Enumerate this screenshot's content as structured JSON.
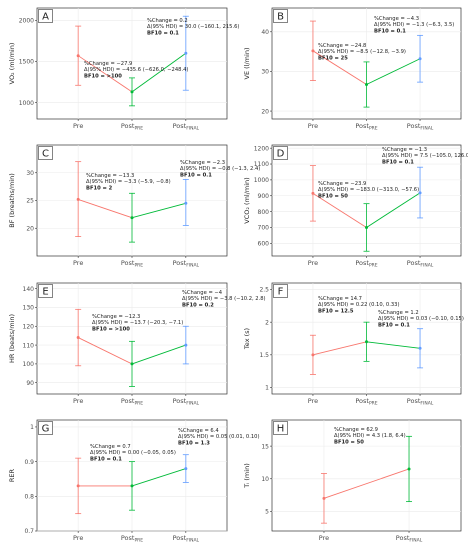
{
  "colors": {
    "panel_bg": "#ffffff",
    "grid": "#ebebeb",
    "border": "#333333",
    "pre_post": "#f8766d",
    "post_final": "#00ba38",
    "final": "#619cff",
    "text": "#222222",
    "axis_text": "#4d4d4d"
  },
  "chart_data": [
    {
      "panel": "A",
      "type": "line",
      "ylabel": "VO₂ (ml/min)",
      "categories": [
        "Pre",
        "Post_PRE",
        "Post_FINAL"
      ],
      "ylim": [
        800,
        2150
      ],
      "yticks": [
        1000,
        1500,
        2000
      ],
      "points": [
        {
          "x": "Pre",
          "y": 1570,
          "lo": 1210,
          "hi": 1930
        },
        {
          "x": "Post_PRE",
          "y": 1130,
          "lo": 960,
          "hi": 1300
        },
        {
          "x": "Post_FINAL",
          "y": 1600,
          "lo": 1150,
          "hi": 2050
        }
      ],
      "annotations": [
        [
          "%Change = 0.2",
          "Δ(95% HDI) = 30.0 (−160.1, 215.6)",
          "BF10 = 0.1"
        ],
        [
          "%Change = −27.9",
          "Δ(95% HDI) = −435.6 (−626.0, −248.4)",
          "BF10 = >100"
        ]
      ]
    },
    {
      "panel": "B",
      "type": "line",
      "ylabel": "VE (l/min)",
      "categories": [
        "Pre",
        "Post_PRE",
        "Post_FINAL"
      ],
      "ylim": [
        18,
        46
      ],
      "yticks": [
        20,
        30,
        40
      ],
      "points": [
        {
          "x": "Pre",
          "y": 35.2,
          "lo": 27.7,
          "hi": 42.7
        },
        {
          "x": "Post_PRE",
          "y": 26.7,
          "lo": 21.0,
          "hi": 32.4
        },
        {
          "x": "Post_FINAL",
          "y": 33.2,
          "lo": 27.3,
          "hi": 39.1
        }
      ],
      "annotations": [
        [
          "%Change = −4.3",
          "Δ(95% HDI) = −1.3 (−6.3, 3.5)",
          "BF10 = 0.1"
        ],
        [
          "%Change = −24.8",
          "Δ(95% HDI) = −8.5 (−12.8, −3.9)",
          "BF10 = 25"
        ]
      ]
    },
    {
      "panel": "C",
      "type": "line",
      "ylabel": "BF (breaths/min)",
      "categories": [
        "Pre",
        "Post_PRE",
        "Post_FINAL"
      ],
      "ylim": [
        15,
        35
      ],
      "yticks": [
        20,
        25,
        30
      ],
      "points": [
        {
          "x": "Pre",
          "y": 25.2,
          "lo": 18.5,
          "hi": 32.0
        },
        {
          "x": "Post_PRE",
          "y": 21.9,
          "lo": 17.5,
          "hi": 26.3
        },
        {
          "x": "Post_FINAL",
          "y": 24.5,
          "lo": 20.5,
          "hi": 28.8
        }
      ],
      "annotations": [
        [
          "%Change = −2.3",
          "Δ(95% HDI) = −0.8 (−1.3, 2.4)",
          "BF10 = 0.1"
        ],
        [
          "%Change = −13.3",
          "Δ(95% HDI) = −3.3 (−5.9, −0.8)",
          "BF10 = 2"
        ]
      ]
    },
    {
      "panel": "D",
      "type": "line",
      "ylabel": "VCO₂ (ml/min)",
      "categories": [
        "Pre",
        "Post_PRE",
        "Post_FINAL"
      ],
      "ylim": [
        520,
        1220
      ],
      "yticks": [
        600,
        700,
        800,
        900,
        1000,
        1100,
        1200
      ],
      "points": [
        {
          "x": "Pre",
          "y": 915,
          "lo": 740,
          "hi": 1090
        },
        {
          "x": "Post_PRE",
          "y": 700,
          "lo": 550,
          "hi": 850
        },
        {
          "x": "Post_FINAL",
          "y": 918,
          "lo": 760,
          "hi": 1080
        }
      ],
      "annotations": [
        [
          "%Change = −1.3",
          "Δ(95% HDI) = 7.5 (−105.0, 126.0)",
          "BF10 = 0.1"
        ],
        [
          "%Change = −23.9",
          "Δ(95% HDI) = −183.0 (−313.0, −57.6)",
          "BF10 = 50"
        ]
      ]
    },
    {
      "panel": "E",
      "type": "line",
      "ylabel": "HR (beats/min)",
      "categories": [
        "Pre",
        "Post_PRE",
        "Post_FINAL"
      ],
      "ylim": [
        84,
        143
      ],
      "yticks": [
        90,
        100,
        110,
        120,
        130,
        140
      ],
      "points": [
        {
          "x": "Pre",
          "y": 114,
          "lo": 99,
          "hi": 129
        },
        {
          "x": "Post_PRE",
          "y": 100,
          "lo": 88,
          "hi": 112
        },
        {
          "x": "Post_FINAL",
          "y": 110,
          "lo": 100,
          "hi": 120
        }
      ],
      "annotations": [
        [
          "%Change = −4",
          "Δ(95% HDI) = −3.8 (−10.2, 2.8)",
          "BF10 = 0.2"
        ],
        [
          "%Change = −12.3",
          "Δ(95% HDI) = −13.7 (−20.3, −7.1)",
          "BF10 = >100"
        ]
      ]
    },
    {
      "panel": "F",
      "type": "line",
      "ylabel": "Tex (s)",
      "categories": [
        "Pre",
        "Post_PRE",
        "Post_FINAL"
      ],
      "ylim": [
        0.9,
        2.6
      ],
      "yticks": [
        1.0,
        1.5,
        2.0,
        2.5
      ],
      "points": [
        {
          "x": "Pre",
          "y": 1.5,
          "lo": 1.2,
          "hi": 1.8
        },
        {
          "x": "Post_PRE",
          "y": 1.7,
          "lo": 1.4,
          "hi": 2.0
        },
        {
          "x": "Post_FINAL",
          "y": 1.6,
          "lo": 1.3,
          "hi": 1.9
        }
      ],
      "annotations": [
        [
          "%Change = 14.7",
          "Δ(95% HDI) = 0.22 (0.10, 0.33)",
          "BF10 = 12.5"
        ],
        [
          "%Change = 1.2",
          "Δ(95% HDI) = 0.03 (−0.10, 0.15)",
          "BF10 = 0.1"
        ]
      ]
    },
    {
      "panel": "G",
      "type": "line",
      "ylabel": "RER",
      "categories": [
        "Pre",
        "Post_PRE",
        "Post_FINAL"
      ],
      "ylim": [
        0.7,
        1.02
      ],
      "yticks": [
        0.7,
        0.8,
        0.9,
        1.0
      ],
      "points": [
        {
          "x": "Pre",
          "y": 0.83,
          "lo": 0.75,
          "hi": 0.91
        },
        {
          "x": "Post_PRE",
          "y": 0.83,
          "lo": 0.76,
          "hi": 0.9
        },
        {
          "x": "Post_FINAL",
          "y": 0.88,
          "lo": 0.84,
          "hi": 0.92
        }
      ],
      "annotations": [
        [
          "%Change = 6.4",
          "Δ(95% HDI) = 0.05 (0.01, 0.10)",
          "BF10 = 1.3"
        ],
        [
          "%Change = 0.7",
          "Δ(95% HDI) = 0.00 (−0.05, 0.05)",
          "BF10 = 0.1"
        ]
      ]
    },
    {
      "panel": "H",
      "type": "line",
      "ylabel": "Tₗ (min)",
      "categories": [
        "Pre",
        "Post_FINAL"
      ],
      "ylim": [
        2,
        19
      ],
      "yticks": [
        5,
        10,
        15
      ],
      "points": [
        {
          "x": "Pre",
          "y": 7.0,
          "lo": 3.2,
          "hi": 10.8
        },
        {
          "x": "Post_FINAL",
          "y": 11.5,
          "lo": 6.5,
          "hi": 16.5
        }
      ],
      "annotations": [
        [
          "%Change = 62.9",
          "Δ(95% HDI) = 4.3 (1.8, 6.4)",
          "BF10 = 50"
        ]
      ]
    }
  ]
}
